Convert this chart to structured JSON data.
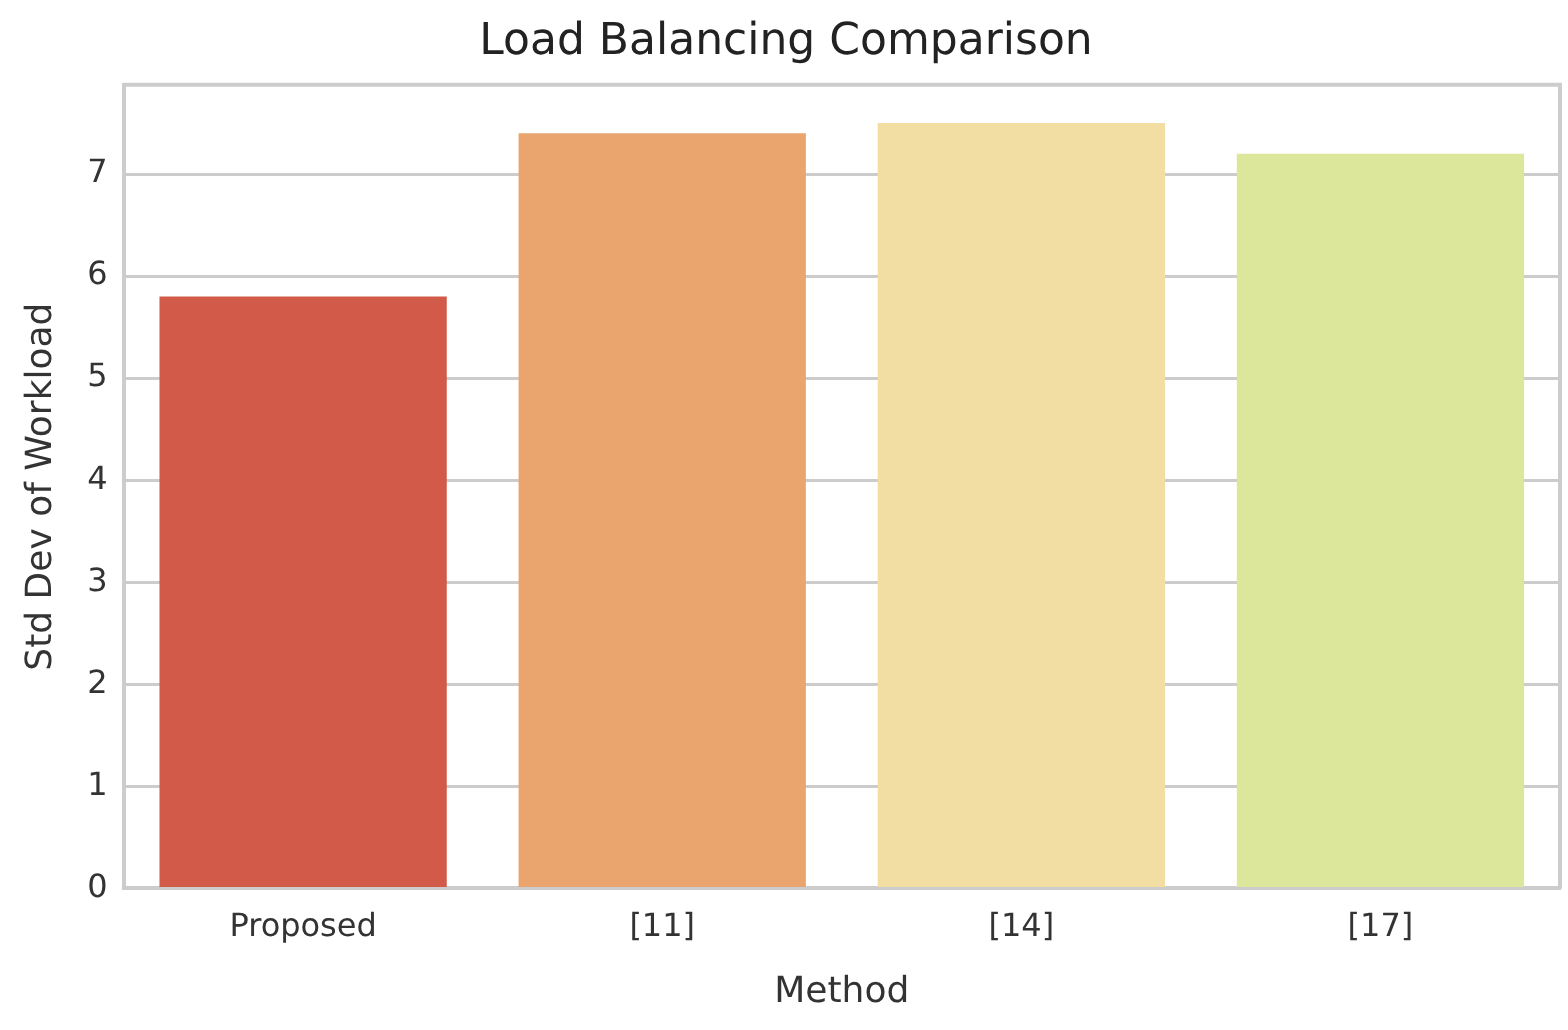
{
  "chart_data": {
    "type": "bar",
    "title": "Load Balancing Comparison",
    "xlabel": "Method",
    "ylabel": "Std Dev of Workload",
    "categories": [
      "Proposed",
      "[11]",
      "[14]",
      "[17]"
    ],
    "values": [
      5.8,
      7.4,
      7.5,
      7.2
    ],
    "colors": [
      "#d15b48",
      "#e9a56d",
      "#f2dea3",
      "#dde79c"
    ],
    "ylim": [
      0,
      7.875
    ],
    "yticks": [
      0,
      1,
      2,
      3,
      4,
      5,
      6,
      7
    ],
    "grid": "y",
    "legend": false
  }
}
